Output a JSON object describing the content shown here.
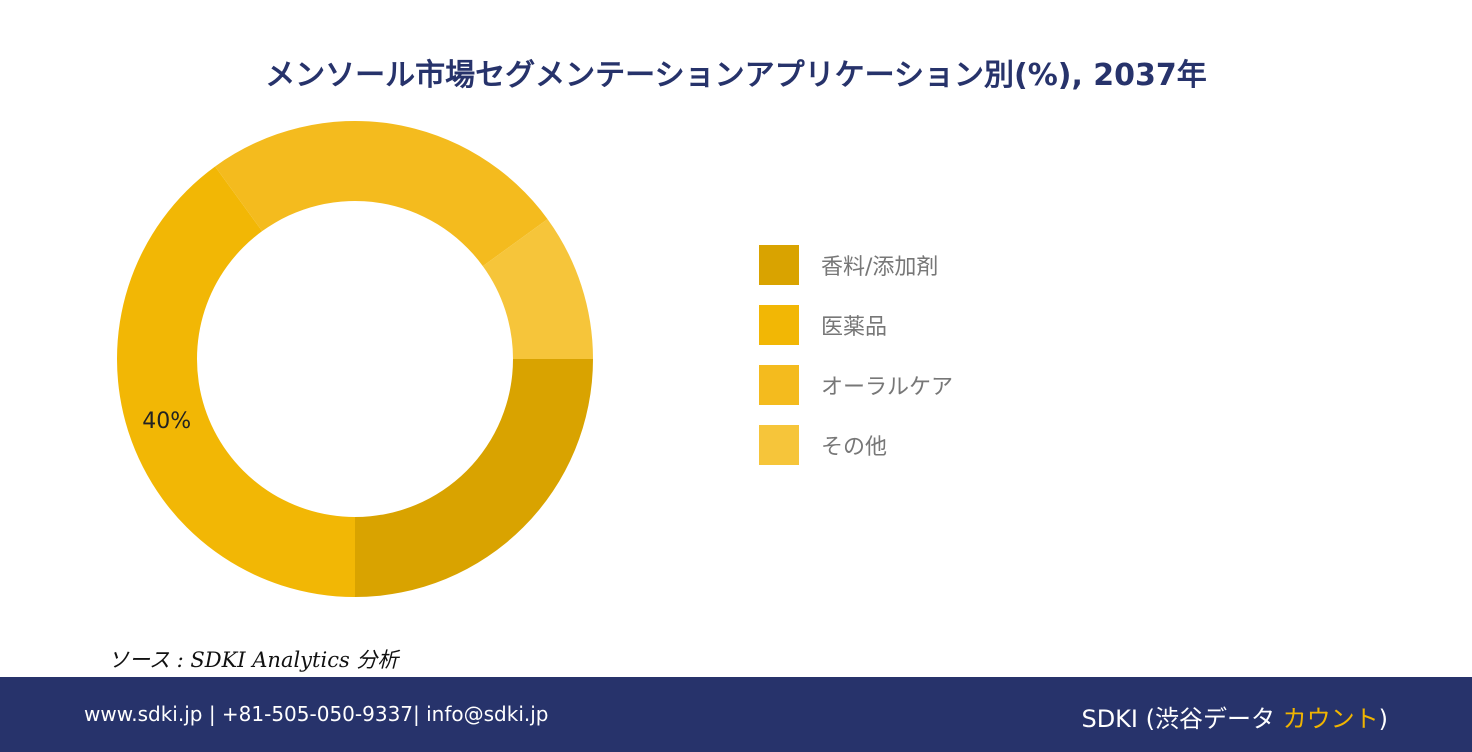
{
  "title": "メンソール市場セグメンテーションアプリケーション別(%), 2037年",
  "chart_data": {
    "type": "pie",
    "categories": [
      "香料/添加剤",
      "医薬品",
      "オーラルケア",
      "その他"
    ],
    "values": [
      25,
      40,
      25,
      10
    ],
    "colors": [
      "#d9a300",
      "#f2b705",
      "#f4bb1e",
      "#f6c53a"
    ],
    "data_labels": [
      "",
      "40%",
      "",
      ""
    ],
    "donut": true,
    "legend_position": "right"
  },
  "source": "ソース : SDKI Analytics 分析",
  "footer": {
    "contact": "www.sdki.jp | +81-505-050-9337| info@sdki.jp",
    "brand_prefix": "SDKI (渋谷データ ",
    "brand_accent": "カウント",
    "brand_suffix": ")"
  }
}
